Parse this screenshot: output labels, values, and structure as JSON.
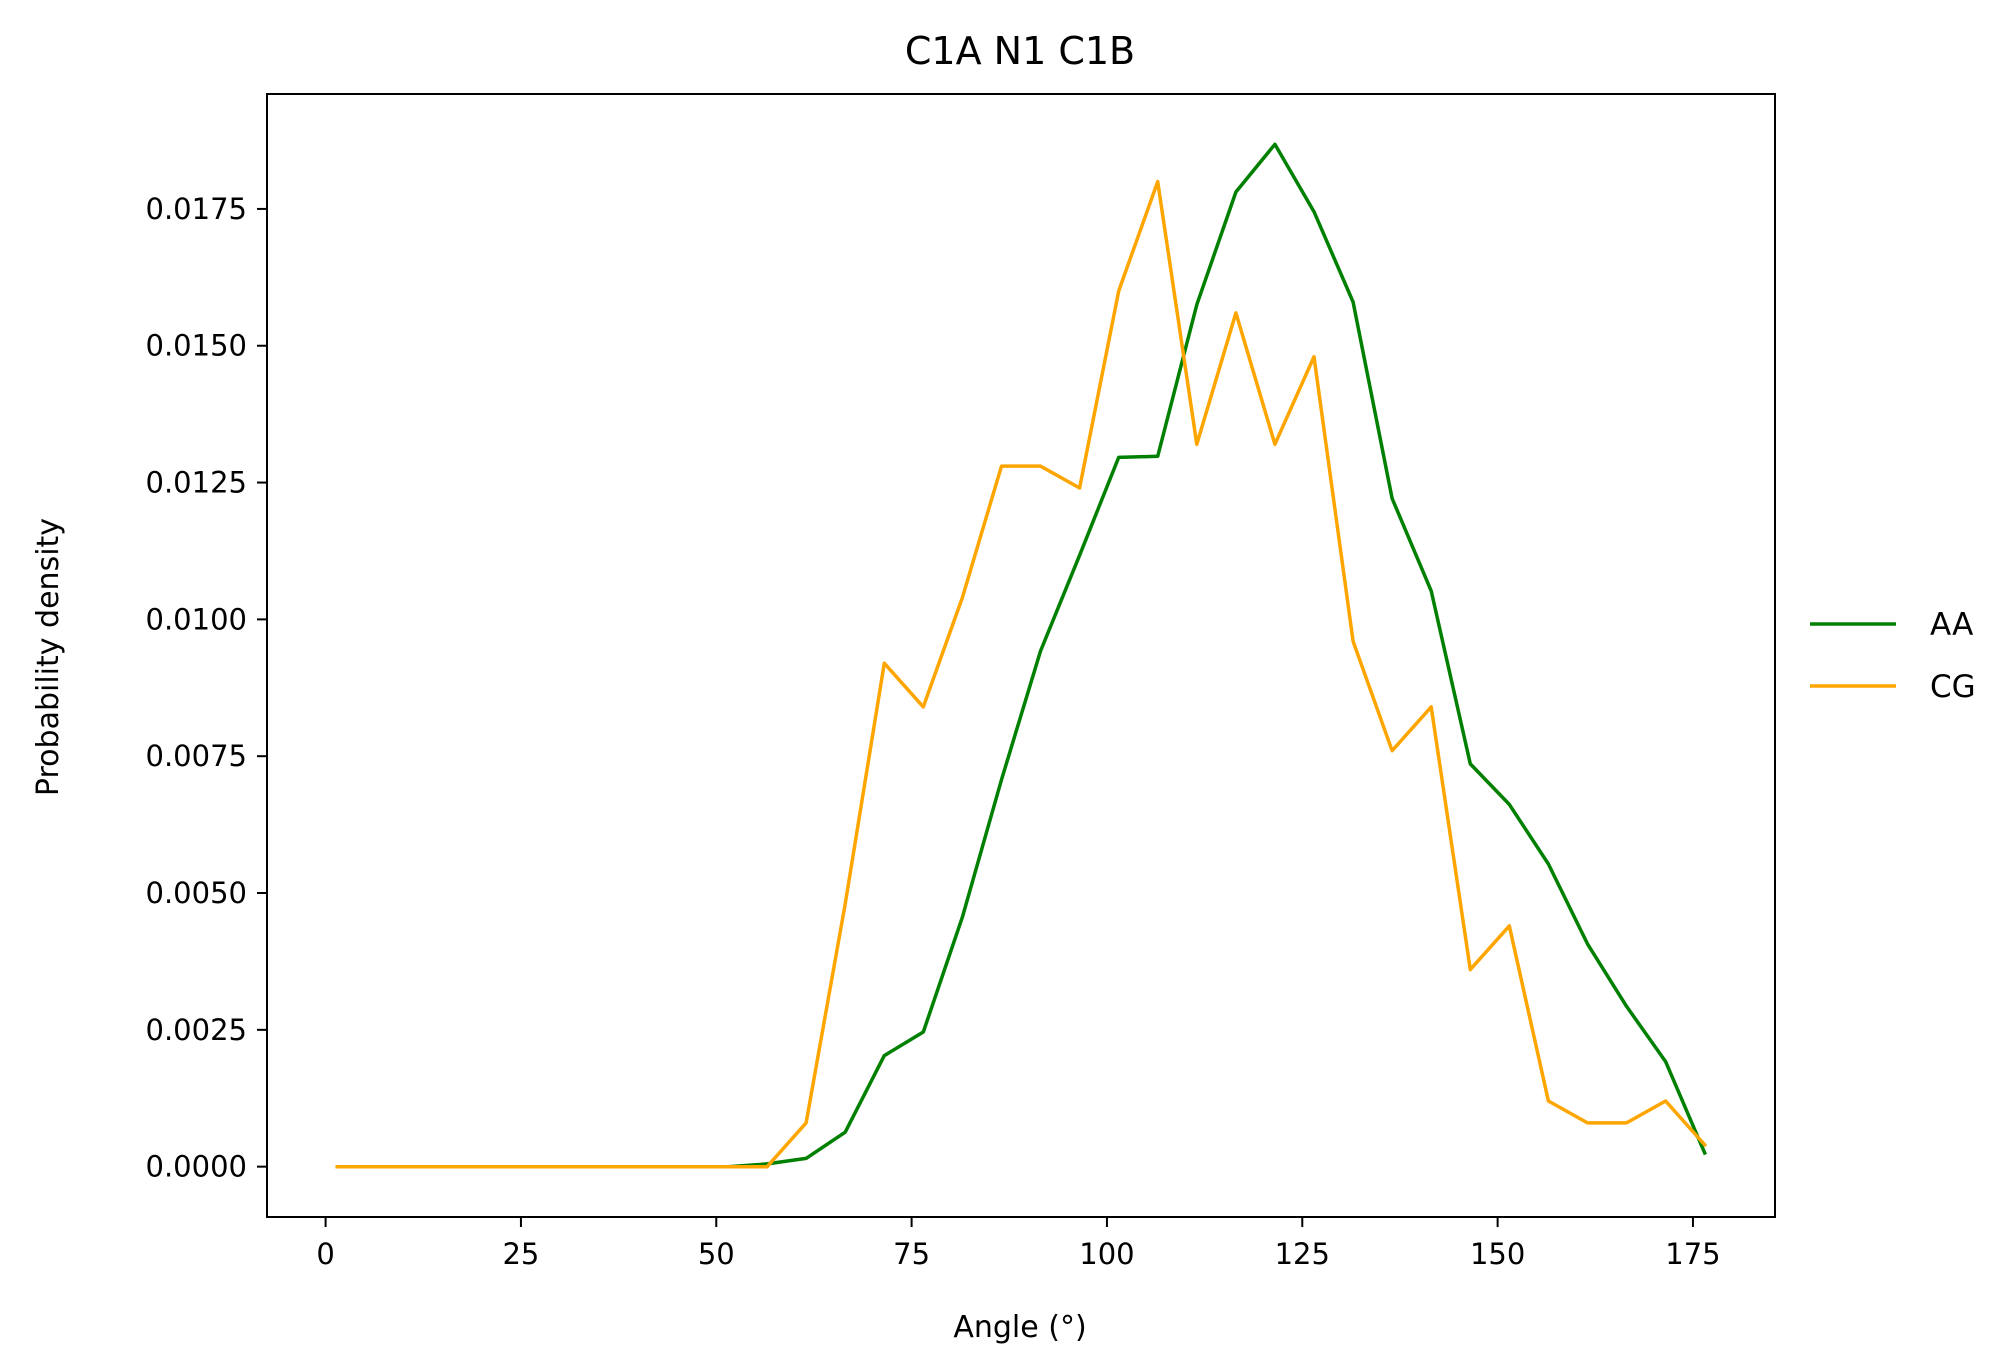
{
  "chart_data": {
    "type": "line",
    "title": "C1A N1 C1B",
    "xlabel": "Angle (°)",
    "ylabel": "Probability density",
    "xlim": [
      -7.5,
      185.5
    ],
    "ylim": [
      -0.00092,
      0.0196
    ],
    "xticks": [
      0,
      25,
      50,
      75,
      100,
      125,
      150,
      175
    ],
    "xtick_labels": [
      "0",
      "25",
      "50",
      "75",
      "100",
      "125",
      "150",
      "175"
    ],
    "yticks": [
      0.0,
      0.0025,
      0.005,
      0.0075,
      0.01,
      0.0125,
      0.015,
      0.0175
    ],
    "ytick_labels": [
      "0.0000",
      "0.0025",
      "0.0050",
      "0.0075",
      "0.0100",
      "0.0125",
      "0.0150",
      "0.0175"
    ],
    "grid": false,
    "legend_position": "center-right-outside",
    "x": [
      1.5,
      6.5,
      11.5,
      16.5,
      21.5,
      26.5,
      31.5,
      36.5,
      41.5,
      46.5,
      51.5,
      56.5,
      61.5,
      66.5,
      71.5,
      76.5,
      81.5,
      86.5,
      91.5,
      96.5,
      101.5,
      106.5,
      111.5,
      116.5,
      121.5,
      126.5,
      131.5,
      136.5,
      141.5,
      146.5,
      151.5,
      156.5,
      161.5,
      166.5,
      171.5,
      176.5
    ],
    "series": [
      {
        "name": "AA",
        "color": "#008000",
        "values": [
          0,
          0,
          0,
          0,
          0,
          0,
          0,
          0,
          0,
          0,
          0,
          5e-05,
          0.00015,
          0.00063,
          0.00203,
          0.00246,
          0.00456,
          0.00707,
          0.00942,
          0.01117,
          0.01296,
          0.01298,
          0.01575,
          0.01781,
          0.01868,
          0.01745,
          0.0158,
          0.01221,
          0.01052,
          0.00736,
          0.00662,
          0.00553,
          0.00407,
          0.00293,
          0.00192,
          0.00025
        ]
      },
      {
        "name": "CG",
        "color": "#ffa500",
        "values": [
          0,
          0,
          0,
          0,
          0,
          0,
          0,
          0,
          0,
          0,
          0,
          0,
          0.0008,
          0.0048,
          0.0092,
          0.0084,
          0.0104,
          0.0128,
          0.0128,
          0.0124,
          0.016,
          0.018,
          0.0132,
          0.0156,
          0.0132,
          0.0148,
          0.0096,
          0.0076,
          0.0084,
          0.0036,
          0.0044,
          0.0012,
          0.0008,
          0.0008,
          0.0012,
          0.0004
        ]
      }
    ]
  }
}
